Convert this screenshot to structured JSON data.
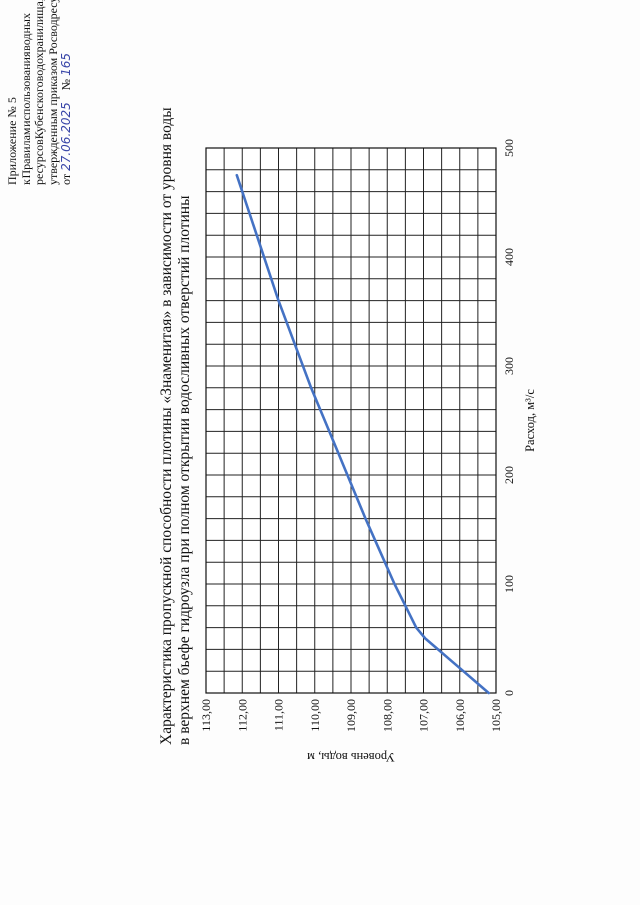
{
  "header": {
    "line1": "Приложение № 5",
    "line2a": "к",
    "line2b": "Правилам",
    "line2c": "использования",
    "line2d": "водных",
    "line3a": "ресурсов",
    "line3b": "Кубенского",
    "line3c": "водохранилища,",
    "line4": "утвержденным приказом Росводресурсов",
    "line5_prefix": "от",
    "date_handwritten": "27.06.2025",
    "number_prefix": "№",
    "number_handwritten": "165"
  },
  "chart_data": {
    "type": "line",
    "title_line1": "Характеристика пропускной способности плотины «Знаменитая» в зависимости от уровня воды",
    "title_line2": "в верхнем бьефе гидроузла при полном открытии водосливных отверстий плотины",
    "xlabel": "Расход, м³/с",
    "ylabel": "Уровень воды, м",
    "xlim": [
      0,
      500
    ],
    "ylim": [
      105,
      113
    ],
    "x_ticks": [
      "0",
      "100",
      "200",
      "300",
      "400",
      "500"
    ],
    "y_ticks": [
      "105,00",
      "106,00",
      "107,00",
      "108,00",
      "109,00",
      "110,00",
      "111,00",
      "112,00",
      "113,00"
    ],
    "grid": true,
    "series": [
      {
        "color": "#4472c4",
        "points": [
          [
            0,
            105.2
          ],
          [
            10,
            105.55
          ],
          [
            20,
            105.9
          ],
          [
            30,
            106.25
          ],
          [
            40,
            106.6
          ],
          [
            50,
            106.95
          ],
          [
            60,
            107.2
          ],
          [
            80,
            107.5
          ],
          [
            100,
            107.8
          ],
          [
            130,
            108.2
          ],
          [
            160,
            108.6
          ],
          [
            200,
            109.1
          ],
          [
            240,
            109.6
          ],
          [
            280,
            110.1
          ],
          [
            320,
            110.55
          ],
          [
            360,
            111.0
          ],
          [
            400,
            111.4
          ],
          [
            440,
            111.8
          ],
          [
            475,
            112.15
          ]
        ]
      }
    ]
  }
}
